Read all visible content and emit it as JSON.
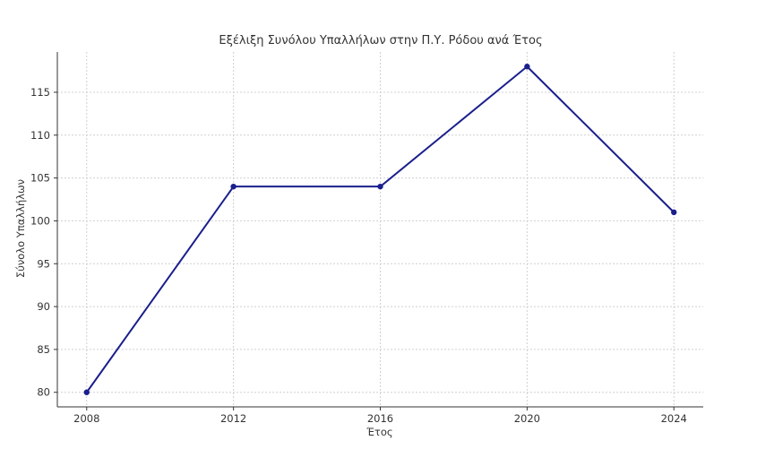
{
  "chart_data": {
    "type": "line",
    "title": "Εξέλιξη Συνόλου Υπαλλήλων στην Π.Υ. Ρόδου ανά Έτος",
    "xlabel": "Έτος",
    "ylabel": "Σύνολο Υπαλλήλων",
    "x": [
      2008,
      2012,
      2016,
      2020,
      2024
    ],
    "series": [
      {
        "values": [
          80,
          104,
          104,
          118,
          101
        ],
        "color": "#1a1f8c"
      }
    ],
    "xticks": [
      2008,
      2012,
      2016,
      2020,
      2024
    ],
    "yticks": [
      80,
      85,
      90,
      95,
      100,
      105,
      110,
      115
    ],
    "xlim": [
      2007.2,
      2024.8
    ],
    "ylim": [
      78.3,
      119.7
    ],
    "grid": true,
    "legend": false
  }
}
